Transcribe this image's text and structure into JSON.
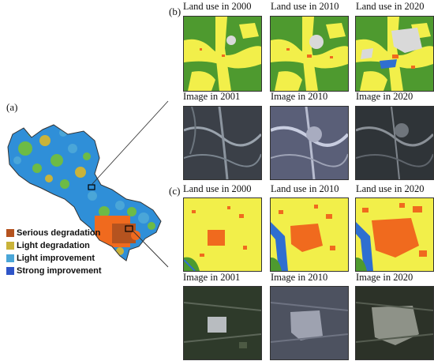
{
  "figure": {
    "label_a": "(a)",
    "label_b": "(b)",
    "label_c": "(c)"
  },
  "legend": {
    "items": [
      {
        "label": "Serious degradation",
        "color": "#b5531f"
      },
      {
        "label": "Light degradation",
        "color": "#c9b33a"
      },
      {
        "label": "Light improvement",
        "color": "#4aa6d8"
      },
      {
        "label": "Strong improvement",
        "color": "#2f55c8"
      }
    ]
  },
  "panel_b": {
    "row1": [
      "Land use in 2000",
      "Land use in 2010",
      "Land use in 2020"
    ],
    "row2": [
      "Image in 2001",
      "Image in 2010",
      "Image in 2020"
    ]
  },
  "panel_c": {
    "row1": [
      "Land use in 2000",
      "Land use in 2010",
      "Land use in 2020"
    ],
    "row2": [
      "Image in 2001",
      "Image in 2010",
      "Image in 2020"
    ]
  },
  "colors": {
    "cropland": "#f2ef4a",
    "forest": "#4e9a2f",
    "built_up": "#f06a1e",
    "water": "#2f6fd0",
    "bare": "#d9d9d9",
    "map_blue": "#2f8fd8",
    "map_green": "#6dbb46"
  }
}
